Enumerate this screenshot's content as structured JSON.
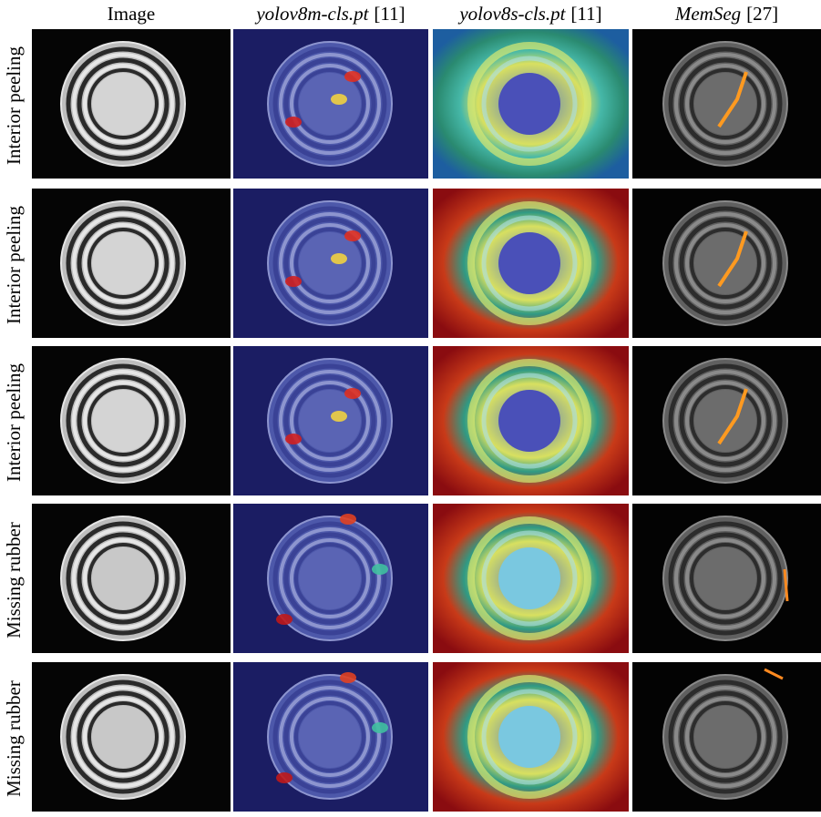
{
  "columns": [
    {
      "title": "Image"
    },
    {
      "title": "yolov8m-cls.pt",
      "ref": "[11]"
    },
    {
      "title": "yolov8s-cls.pt",
      "ref": "[11]"
    },
    {
      "title": "MemSeg",
      "ref": "[27]"
    }
  ],
  "rows": [
    {
      "label": "Interior peeling"
    },
    {
      "label": "Interior peeling"
    },
    {
      "label": "Interior peeling"
    },
    {
      "label": "Missing rubber"
    },
    {
      "label": "Missing rubber"
    }
  ]
}
